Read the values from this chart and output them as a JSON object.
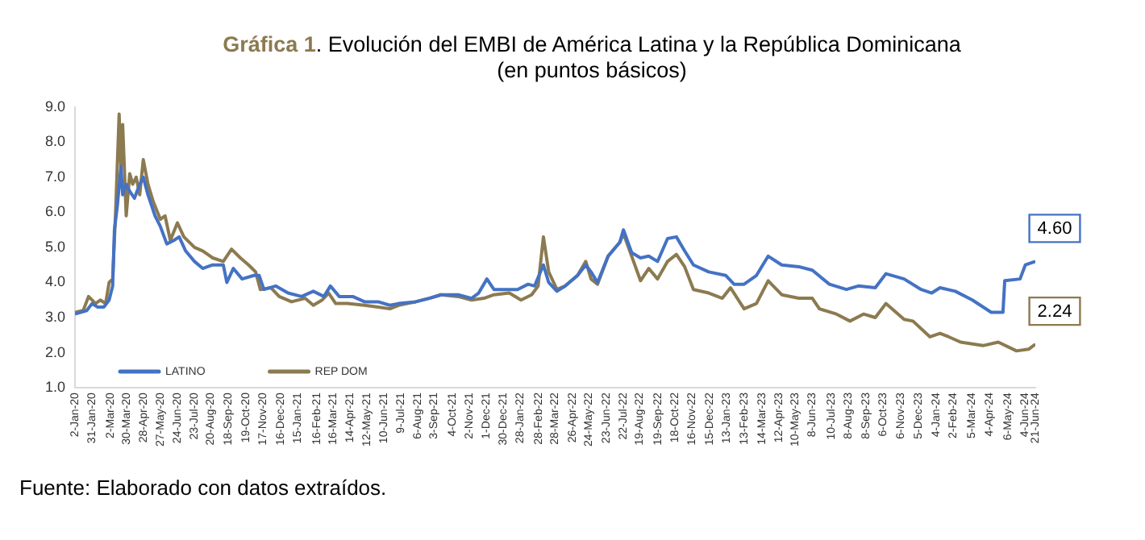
{
  "chart_data": {
    "type": "line",
    "title": "Gráfica 1. Evolución del EMBI de América Latina y la República Dominicana",
    "subtitle": "(en puntos básicos)",
    "annotations": [
      "Fuente: Elaborado con datos extraídos.",
      {
        "text": "4.60",
        "x": "2024-06-21",
        "y": 4.6
      },
      {
        "text": "2.24",
        "x": "2024-06-21",
        "y": 2.24
      }
    ],
    "legend": "bottom left",
    "marker": "none",
    "xlim": [
      "2020-01-02",
      "2024-06-21"
    ],
    "xticks": [
      {
        "value": "2020-01-02",
        "label": "2-Jan-20"
      },
      {
        "value": "2020-01-31",
        "label": "31-Jan-20"
      },
      {
        "value": "2020-03-02",
        "label": "2-Mar-20"
      },
      {
        "value": "2020-03-30",
        "label": "30-Mar-20"
      },
      {
        "value": "2020-04-28",
        "label": "28-Apr-20"
      },
      {
        "value": "2020-05-27",
        "label": "27-May-20"
      },
      {
        "value": "2020-06-24",
        "label": "24-Jun-20"
      },
      {
        "value": "2020-07-23",
        "label": "23-Jul-20"
      },
      {
        "value": "2020-08-20",
        "label": "20-Aug-20"
      },
      {
        "value": "2020-09-18",
        "label": "18-Sep-20"
      },
      {
        "value": "2020-10-19",
        "label": "19-Oct-20"
      },
      {
        "value": "2020-11-17",
        "label": "17-Nov-20"
      },
      {
        "value": "2020-12-16",
        "label": "16-Dec-20"
      },
      {
        "value": "2021-01-15",
        "label": "15-Jan-21"
      },
      {
        "value": "2021-02-16",
        "label": "16-Feb-21"
      },
      {
        "value": "2021-03-16",
        "label": "16-Mar-21"
      },
      {
        "value": "2021-04-14",
        "label": "14-Apr-21"
      },
      {
        "value": "2021-05-12",
        "label": "12-May-21"
      },
      {
        "value": "2021-06-10",
        "label": "10-Jun-21"
      },
      {
        "value": "2021-07-09",
        "label": "9-Jul-21"
      },
      {
        "value": "2021-08-06",
        "label": "6-Aug-21"
      },
      {
        "value": "2021-09-03",
        "label": "3-Sep-21"
      },
      {
        "value": "2021-10-04",
        "label": "4-Oct-21"
      },
      {
        "value": "2021-11-02",
        "label": "2-Nov-21"
      },
      {
        "value": "2021-12-01",
        "label": "1-Dec-21"
      },
      {
        "value": "2021-12-30",
        "label": "30-Dec-21"
      },
      {
        "value": "2022-01-28",
        "label": "28-Jan-22"
      },
      {
        "value": "2022-02-28",
        "label": "28-Feb-22"
      },
      {
        "value": "2022-03-28",
        "label": "28-Mar-22"
      },
      {
        "value": "2022-04-26",
        "label": "26-Apr-22"
      },
      {
        "value": "2022-05-24",
        "label": "24-May-22"
      },
      {
        "value": "2022-06-23",
        "label": "23-Jun-22"
      },
      {
        "value": "2022-07-22",
        "label": "22-Jul-22"
      },
      {
        "value": "2022-08-19",
        "label": "19-Aug-22"
      },
      {
        "value": "2022-09-19",
        "label": "19-Sep-22"
      },
      {
        "value": "2022-10-18",
        "label": "18-Oct-22"
      },
      {
        "value": "2022-11-16",
        "label": "16-Nov-22"
      },
      {
        "value": "2022-12-15",
        "label": "15-Dec-22"
      },
      {
        "value": "2023-01-13",
        "label": "13-Jan-23"
      },
      {
        "value": "2023-02-13",
        "label": "13-Feb-23"
      },
      {
        "value": "2023-03-14",
        "label": "14-Mar-23"
      },
      {
        "value": "2023-04-12",
        "label": "12-Apr-23"
      },
      {
        "value": "2023-05-10",
        "label": "10-May-23"
      },
      {
        "value": "2023-06-08",
        "label": "8-Jun-23"
      },
      {
        "value": "2023-07-10",
        "label": "10-Jul-23"
      },
      {
        "value": "2023-08-08",
        "label": "8-Aug-23"
      },
      {
        "value": "2023-09-08",
        "label": "8-Sep-23"
      },
      {
        "value": "2023-10-06",
        "label": "6-Oct-23"
      },
      {
        "value": "2023-11-06",
        "label": "6-Nov-23"
      },
      {
        "value": "2023-12-05",
        "label": "5-Dec-23"
      },
      {
        "value": "2024-01-04",
        "label": "4-Jan-24"
      },
      {
        "value": "2024-02-02",
        "label": "2-Feb-24"
      },
      {
        "value": "2024-03-05",
        "label": "5-Mar-24"
      },
      {
        "value": "2024-04-04",
        "label": "4-Apr-24"
      },
      {
        "value": "2024-05-06",
        "label": "6-May-24"
      },
      {
        "value": "2024-06-04",
        "label": "4-Jun-24"
      },
      {
        "value": "2024-06-21",
        "label": "21-Jun-24"
      }
    ],
    "ylim": [
      1,
      9
    ],
    "yticks": [
      {
        "value": 1,
        "label": "1.0"
      },
      {
        "value": 2,
        "label": "2.0"
      },
      {
        "value": 3,
        "label": "3.0"
      },
      {
        "value": 4,
        "label": "4.0"
      },
      {
        "value": 5,
        "label": "5.0"
      },
      {
        "value": 6,
        "label": "6.0"
      },
      {
        "value": 7,
        "label": "7.0"
      },
      {
        "value": 8,
        "label": "8.0"
      },
      {
        "value": 9,
        "label": "9.0"
      }
    ],
    "series": [
      {
        "name": "LATINO",
        "color": "#4472c4",
        "x": [
          "2020-01-02",
          "2020-01-22",
          "2020-01-31",
          "2020-02-09",
          "2020-02-20",
          "2020-02-29",
          "2020-03-06",
          "2020-03-09",
          "2020-03-14",
          "2020-03-20",
          "2020-03-23",
          "2020-03-29",
          "2020-04-04",
          "2020-04-12",
          "2020-04-21",
          "2020-04-27",
          "2020-05-05",
          "2020-05-17",
          "2020-05-26",
          "2020-06-06",
          "2020-06-18",
          "2020-06-27",
          "2020-07-08",
          "2020-07-23",
          "2020-08-06",
          "2020-08-23",
          "2020-09-10",
          "2020-09-16",
          "2020-09-27",
          "2020-10-12",
          "2020-11-01",
          "2020-11-10",
          "2020-11-18",
          "2020-12-08",
          "2020-12-29",
          "2021-01-21",
          "2021-02-10",
          "2021-02-28",
          "2021-03-11",
          "2021-03-26",
          "2021-04-18",
          "2021-05-08",
          "2021-05-31",
          "2021-06-20",
          "2021-07-05",
          "2021-08-03",
          "2021-08-26",
          "2021-09-15",
          "2021-10-14",
          "2021-11-06",
          "2021-11-18",
          "2021-12-02",
          "2021-12-14",
          "2021-12-31",
          "2022-01-23",
          "2022-02-10",
          "2022-02-21",
          "2022-03-08",
          "2022-03-17",
          "2022-03-31",
          "2022-04-14",
          "2022-05-05",
          "2022-05-19",
          "2022-05-28",
          "2022-06-08",
          "2022-06-26",
          "2022-07-16",
          "2022-07-22",
          "2022-08-05",
          "2022-08-20",
          "2022-09-03",
          "2022-09-18",
          "2022-10-05",
          "2022-10-20",
          "2022-11-03",
          "2022-11-18",
          "2022-12-14",
          "2023-01-12",
          "2023-01-26",
          "2023-02-12",
          "2023-03-05",
          "2023-03-25",
          "2023-04-17",
          "2023-05-16",
          "2023-06-08",
          "2023-07-07",
          "2023-08-05",
          "2023-08-25",
          "2023-09-23",
          "2023-10-11",
          "2023-11-11",
          "2023-12-10",
          "2023-12-28",
          "2024-01-11",
          "2024-02-06",
          "2024-03-06",
          "2024-04-07",
          "2024-04-27",
          "2024-04-30",
          "2024-05-26",
          "2024-06-04",
          "2024-06-21"
        ],
        "values": [
          3.1,
          3.2,
          3.4,
          3.3,
          3.3,
          3.5,
          3.9,
          5.5,
          6.2,
          7.3,
          6.5,
          6.8,
          6.6,
          6.4,
          6.8,
          7.0,
          6.5,
          5.9,
          5.6,
          5.1,
          5.2,
          5.3,
          4.9,
          4.6,
          4.4,
          4.5,
          4.5,
          4.0,
          4.4,
          4.1,
          4.2,
          4.2,
          3.8,
          3.9,
          3.7,
          3.6,
          3.75,
          3.6,
          3.9,
          3.6,
          3.6,
          3.45,
          3.45,
          3.35,
          3.4,
          3.45,
          3.55,
          3.65,
          3.65,
          3.55,
          3.7,
          4.1,
          3.8,
          3.8,
          3.8,
          3.95,
          3.9,
          4.5,
          4.0,
          3.75,
          3.9,
          4.2,
          4.5,
          4.3,
          4.0,
          4.75,
          5.15,
          5.5,
          4.85,
          4.7,
          4.75,
          4.6,
          5.25,
          5.3,
          4.9,
          4.5,
          4.3,
          4.2,
          3.95,
          3.95,
          4.2,
          4.75,
          4.5,
          4.45,
          4.35,
          3.95,
          3.8,
          3.9,
          3.85,
          4.25,
          4.1,
          3.8,
          3.7,
          3.85,
          3.75,
          3.5,
          3.15,
          3.15,
          4.05,
          4.1,
          4.5,
          4.6
        ]
      },
      {
        "name": "REP DOM",
        "color": "#8c7a50",
        "x": [
          "2020-01-02",
          "2020-01-16",
          "2020-01-25",
          "2020-02-06",
          "2020-02-14",
          "2020-02-23",
          "2020-02-29",
          "2020-03-06",
          "2020-03-11",
          "2020-03-17",
          "2020-03-20",
          "2020-03-23",
          "2020-03-29",
          "2020-04-04",
          "2020-04-09",
          "2020-04-15",
          "2020-04-21",
          "2020-04-27",
          "2020-05-05",
          "2020-05-14",
          "2020-05-26",
          "2020-06-03",
          "2020-06-12",
          "2020-06-24",
          "2020-07-05",
          "2020-07-23",
          "2020-08-06",
          "2020-08-23",
          "2020-09-10",
          "2020-09-24",
          "2020-10-09",
          "2020-10-23",
          "2020-11-04",
          "2020-11-12",
          "2020-11-30",
          "2020-12-14",
          "2021-01-04",
          "2021-01-27",
          "2021-02-10",
          "2021-02-25",
          "2021-03-08",
          "2021-03-20",
          "2021-04-09",
          "2021-05-08",
          "2021-05-31",
          "2021-06-20",
          "2021-07-05",
          "2021-08-03",
          "2021-08-26",
          "2021-09-15",
          "2021-10-14",
          "2021-11-06",
          "2021-11-27",
          "2021-12-14",
          "2022-01-09",
          "2022-01-29",
          "2022-02-16",
          "2022-02-27",
          "2022-03-08",
          "2022-03-17",
          "2022-03-31",
          "2022-04-14",
          "2022-05-05",
          "2022-05-19",
          "2022-05-28",
          "2022-06-08",
          "2022-06-26",
          "2022-07-16",
          "2022-07-22",
          "2022-08-05",
          "2022-08-20",
          "2022-09-03",
          "2022-09-18",
          "2022-10-05",
          "2022-10-20",
          "2022-11-03",
          "2022-11-18",
          "2022-12-14",
          "2023-01-06",
          "2023-01-20",
          "2023-02-12",
          "2023-03-05",
          "2023-03-25",
          "2023-04-17",
          "2023-05-16",
          "2023-06-08",
          "2023-06-20",
          "2023-07-19",
          "2023-08-11",
          "2023-09-03",
          "2023-09-23",
          "2023-10-11",
          "2023-11-11",
          "2023-11-26",
          "2023-12-25",
          "2024-01-11",
          "2024-01-26",
          "2024-02-15",
          "2024-03-24",
          "2024-04-19",
          "2024-05-20",
          "2024-06-10",
          "2024-06-21"
        ],
        "values": [
          3.15,
          3.2,
          3.6,
          3.4,
          3.5,
          3.4,
          4.0,
          4.1,
          6.0,
          8.8,
          7.3,
          8.5,
          5.9,
          7.1,
          6.8,
          7.0,
          6.5,
          7.5,
          6.8,
          6.3,
          5.8,
          5.9,
          5.2,
          5.7,
          5.3,
          5.0,
          4.9,
          4.7,
          4.6,
          4.95,
          4.7,
          4.5,
          4.3,
          3.8,
          3.85,
          3.6,
          3.45,
          3.55,
          3.35,
          3.5,
          3.7,
          3.4,
          3.4,
          3.35,
          3.3,
          3.25,
          3.35,
          3.45,
          3.55,
          3.65,
          3.6,
          3.5,
          3.55,
          3.65,
          3.7,
          3.5,
          3.65,
          3.9,
          5.3,
          4.3,
          3.8,
          3.9,
          4.2,
          4.6,
          4.1,
          3.95,
          4.75,
          5.15,
          5.4,
          4.75,
          4.05,
          4.4,
          4.1,
          4.6,
          4.8,
          4.45,
          3.8,
          3.7,
          3.55,
          3.85,
          3.25,
          3.4,
          4.05,
          3.65,
          3.55,
          3.55,
          3.25,
          3.1,
          2.9,
          3.1,
          3.0,
          3.4,
          2.95,
          2.9,
          2.45,
          2.55,
          2.45,
          2.3,
          2.2,
          2.3,
          2.05,
          2.1,
          2.24
        ]
      }
    ]
  }
}
